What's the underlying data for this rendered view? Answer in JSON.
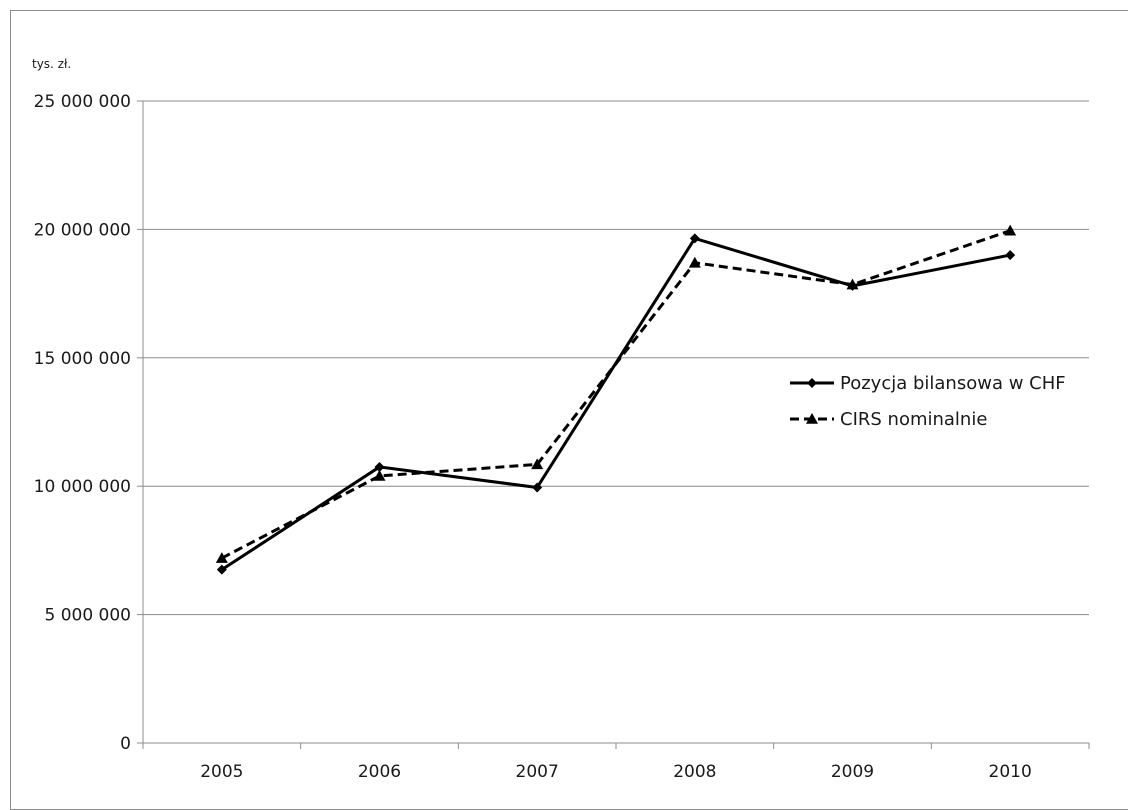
{
  "chart_data": {
    "type": "line",
    "unit_label": "tys. zł.",
    "categories": [
      "2005",
      "2006",
      "2007",
      "2008",
      "2009",
      "2010"
    ],
    "y_ticks": [
      {
        "value": 0,
        "label": "0"
      },
      {
        "value": 5000000,
        "label": "5 000 000"
      },
      {
        "value": 10000000,
        "label": "10 000 000"
      },
      {
        "value": 15000000,
        "label": "15 000 000"
      },
      {
        "value": 20000000,
        "label": "20 000 000"
      },
      {
        "value": 25000000,
        "label": "25 000 000"
      }
    ],
    "ylim": [
      0,
      25000000
    ],
    "grid": "horizontal",
    "legend_position": "right-middle",
    "series": [
      {
        "name": "Pozycja bilansowa w CHF",
        "values": [
          6750000,
          10750000,
          9950000,
          19650000,
          17800000,
          19000000
        ],
        "line_style": "solid",
        "marker": "diamond",
        "color": "#000000"
      },
      {
        "name": "CIRS nominalnie",
        "values": [
          7200000,
          10400000,
          10850000,
          18700000,
          17850000,
          19950000
        ],
        "line_style": "dashed",
        "marker": "triangle",
        "color": "#000000"
      }
    ]
  }
}
